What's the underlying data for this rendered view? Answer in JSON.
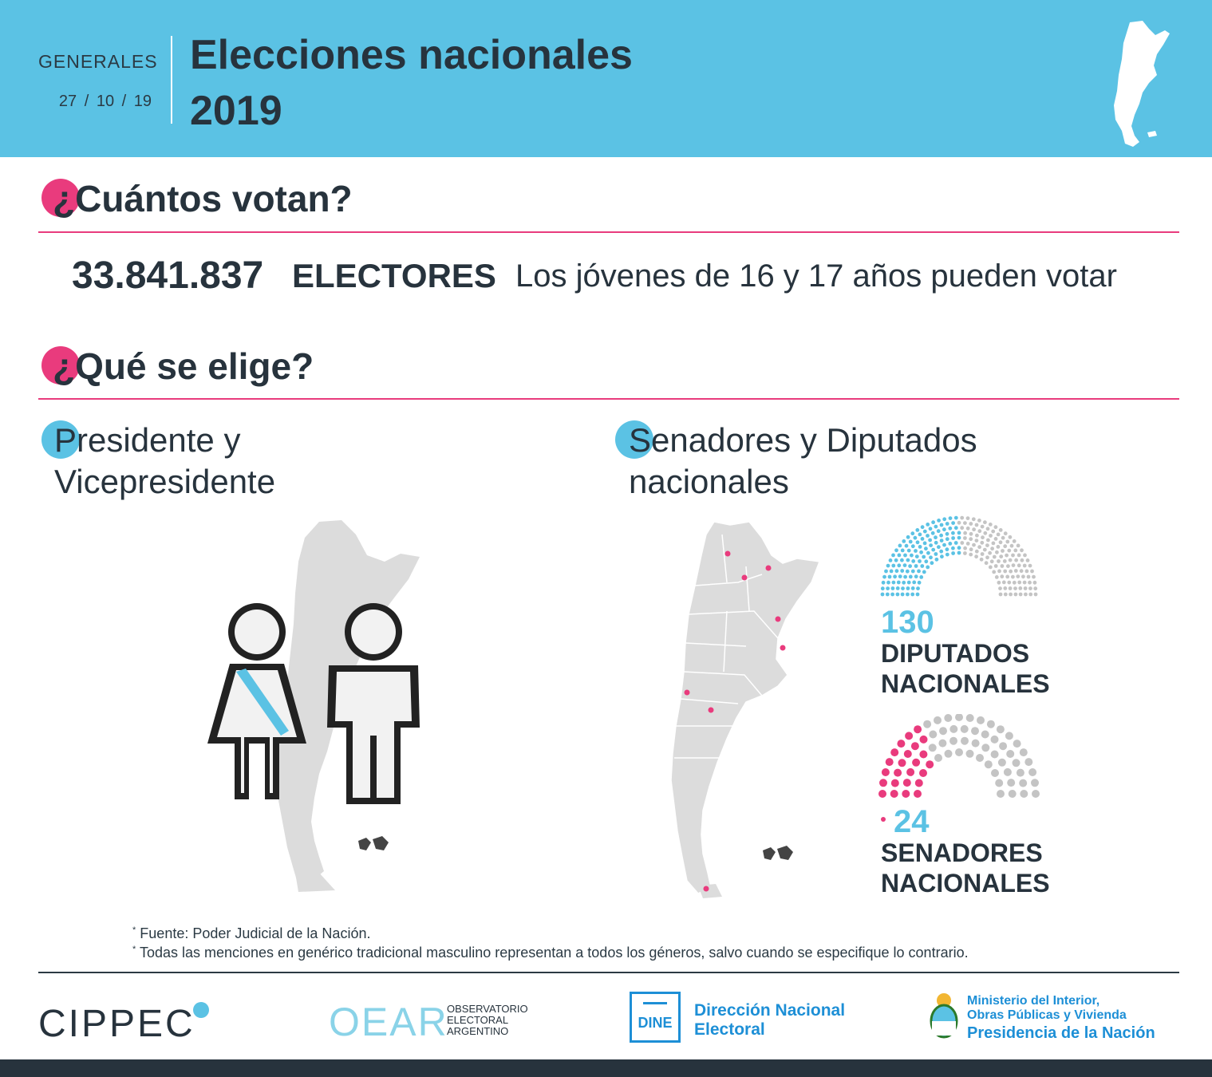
{
  "header": {
    "kind": "GENERALES",
    "date": "27 / 10 / 19",
    "title": "Elecciones nacionales",
    "year": "2019",
    "map_icon": "argentina-map-icon"
  },
  "cuantos": {
    "title": "¿Cuántos votan?",
    "electors_number": "33.841.837",
    "electors_label": "ELECTORES",
    "note": "Los jóvenes de 16 y 17 años pueden votar"
  },
  "que": {
    "title": "¿Qué se elige?"
  },
  "presidente": {
    "line1": "Presidente y",
    "line2": "Vicepresidente",
    "icon": "president-couple-icon"
  },
  "legislativo": {
    "line1": "Senadores y Diputados",
    "line2": "nacionales",
    "diputados": {
      "value": "130",
      "line1": "DIPUTADOS",
      "line2": "NACIONALES",
      "elected": 130,
      "total": 257
    },
    "senadores": {
      "value": "24",
      "line1": "SENADORES",
      "line2": "NACIONALES",
      "elected": 24,
      "total": 72
    }
  },
  "footnotes": {
    "f1": "Fuente: Poder Judicial de la Nación.",
    "f2": "Todas las menciones en genérico tradicional masculino representan a todos los géneros, salvo cuando se especifique lo contrario."
  },
  "logos": {
    "cippec": "CIPPEC",
    "oear_mark": "OEAR",
    "oear_l1": "OBSERVATORIO",
    "oear_l2": "ELECTORAL",
    "oear_l3": "ARGENTINO",
    "dine_mark": "DINE",
    "dine_l1": "Dirección Nacional",
    "dine_l2": "Electoral",
    "min_l1": "Ministerio del Interior,",
    "min_l2": "Obras Públicas y Vivienda",
    "min_l3": "Presidencia de la Nación"
  },
  "colors": {
    "accent_blue": "#5bc2e4",
    "accent_pink": "#e93b7d",
    "text_dark": "#27333d",
    "map_gray": "#dcdcdc",
    "seat_gray": "#c4c4c4"
  }
}
